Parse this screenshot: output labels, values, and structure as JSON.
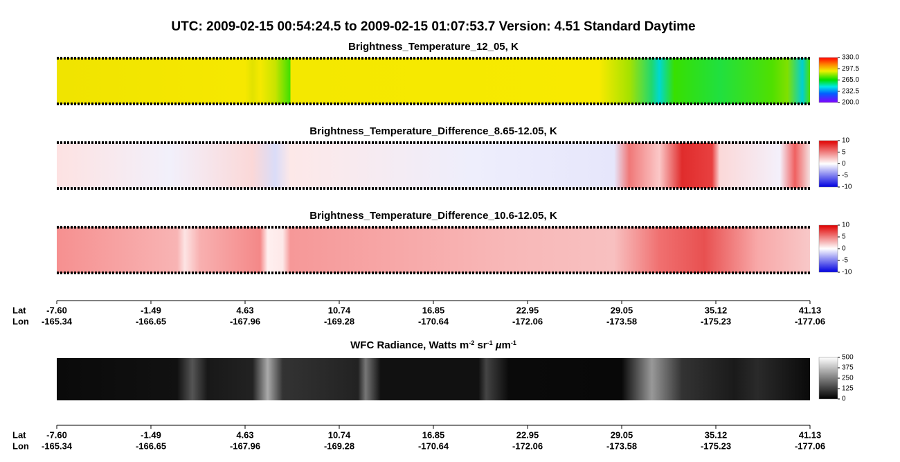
{
  "header": {
    "title": "UTC:  2009-02-15   00:54:24.5  to  2009-02-15   01:07:53.7    Version: 4.51  Standard Daytime"
  },
  "panels": [
    {
      "title": "Brightness_Temperature_12_05, K",
      "colorbar": [
        "330.0",
        "297.5",
        "265.0",
        "232.5",
        "200.0"
      ]
    },
    {
      "title": "Brightness_Temperature_Difference_8.65-12.05, K",
      "colorbar": [
        "10",
        "5",
        "0",
        "-5",
        "-10"
      ]
    },
    {
      "title": "Brightness_Temperature_Difference_10.6-12.05, K",
      "colorbar": [
        "10",
        "5",
        "0",
        "-5",
        "-10"
      ]
    },
    {
      "title_parts": [
        "WFC Radiance, Watts m",
        "-2",
        " sr",
        "-1",
        " ",
        "µ",
        "m",
        "-1"
      ],
      "colorbar": [
        "500",
        "375",
        "250",
        "125",
        "0"
      ]
    }
  ],
  "axes": [
    {
      "lat_label": "Lat",
      "lon_label": "Lon",
      "lat": [
        "-7.60",
        "-1.49",
        "4.63",
        "10.74",
        "16.85",
        "22.95",
        "29.05",
        "35.12",
        "41.13"
      ],
      "lon": [
        "-165.34",
        "-166.65",
        "-167.96",
        "-169.28",
        "-170.64",
        "-172.06",
        "-173.58",
        "-175.23",
        "-177.06"
      ]
    },
    {
      "lat_label": "Lat",
      "lon_label": "Lon",
      "lat": [
        "-7.60",
        "-1.49",
        "4.63",
        "10.74",
        "16.85",
        "22.95",
        "29.05",
        "35.12",
        "41.13"
      ],
      "lon": [
        "-165.34",
        "-166.65",
        "-167.96",
        "-169.28",
        "-170.64",
        "-172.06",
        "-173.58",
        "-175.23",
        "-177.06"
      ]
    }
  ]
}
